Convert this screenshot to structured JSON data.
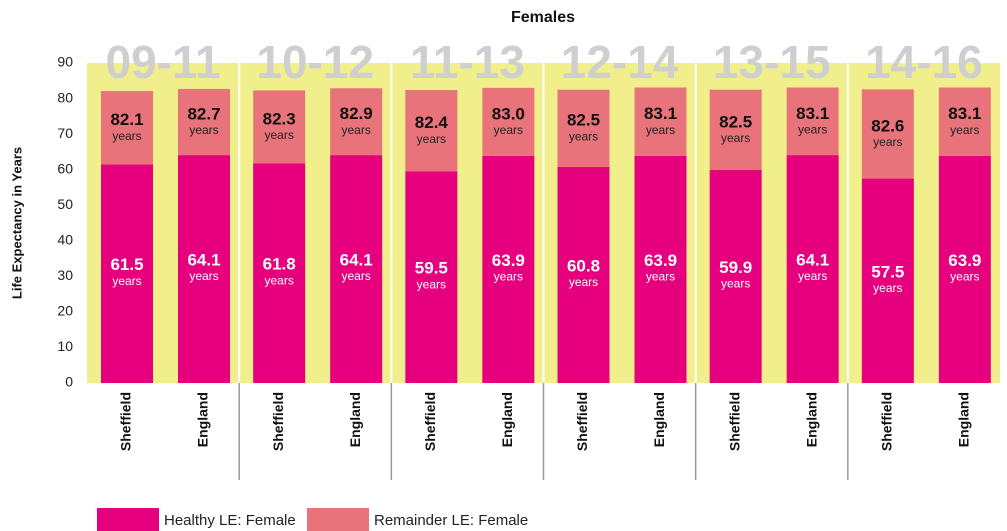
{
  "chart_data": {
    "type": "stacked_bar",
    "title": "Females",
    "y_label": "Life Expectancy in Years",
    "ylim": [
      0,
      90
    ],
    "yticks": [
      0,
      10,
      20,
      30,
      40,
      50,
      60,
      70,
      80,
      90
    ],
    "groups": [
      "09-11",
      "10-12",
      "11-13",
      "12-14",
      "13-15",
      "14-16"
    ],
    "categories": [
      "Sheffield",
      "England",
      "Sheffield",
      "England",
      "Sheffield",
      "England",
      "Sheffield",
      "England",
      "Sheffield",
      "England",
      "Sheffield",
      "England"
    ],
    "unit": "years",
    "series": [
      {
        "name": "Healthy LE: Female",
        "color": "#e6007e",
        "values": [
          61.5,
          64.1,
          61.8,
          64.1,
          59.5,
          63.9,
          60.8,
          63.9,
          59.9,
          64.1,
          57.5,
          63.9
        ]
      },
      {
        "name": "Remainder LE: Female",
        "color": "#e8737b",
        "values": [
          20.6,
          18.6,
          20.5,
          18.8,
          22.9,
          19.1,
          21.7,
          19.2,
          22.6,
          19.0,
          25.1,
          19.2
        ]
      }
    ],
    "totals": [
      "82.1",
      "82.7",
      "82.3",
      "82.9",
      "82.4",
      "83.0",
      "82.5",
      "83.1",
      "82.5",
      "83.1",
      "82.6",
      "83.1"
    ]
  }
}
